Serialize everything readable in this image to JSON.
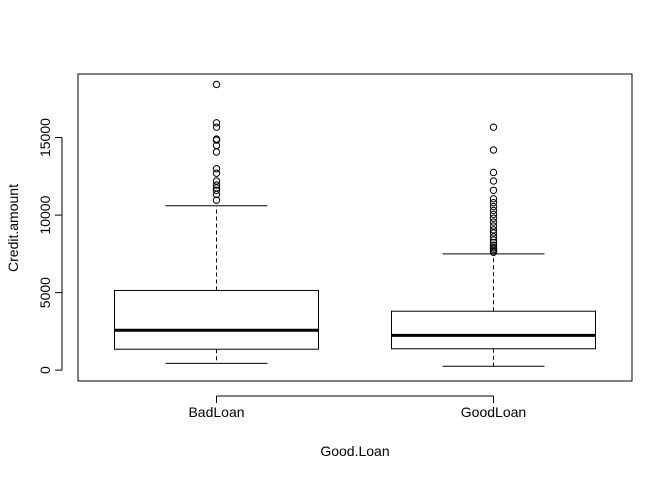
{
  "chart_data": {
    "type": "boxplot",
    "title": "",
    "xlabel": "Good.Loan",
    "ylabel": "Credit.amount",
    "ylim": [
      -700,
      19100
    ],
    "yticks": [
      0,
      5000,
      10000,
      15000
    ],
    "ytick_labels": [
      "0",
      "5000",
      "10000",
      "15000"
    ],
    "grid": false,
    "categories": [
      "BadLoan",
      "GoodLoan"
    ],
    "series": [
      {
        "category": "BadLoan",
        "whisker_low": 433,
        "q1": 1350,
        "median": 2574,
        "q3": 5140,
        "whisker_high": 10600,
        "outliers": [
          10960,
          11330,
          11600,
          11760,
          11940,
          12200,
          12700,
          12990,
          14070,
          14490,
          14840,
          14900,
          15670,
          15950,
          18424
        ]
      },
      {
        "category": "GoodLoan",
        "whisker_low": 250,
        "q1": 1380,
        "median": 2245,
        "q3": 3800,
        "whisker_high": 7500,
        "outliers": [
          7600,
          7700,
          7800,
          7900,
          8050,
          8230,
          8400,
          8600,
          8850,
          9050,
          9300,
          9550,
          9800,
          10050,
          10300,
          10550,
          10800,
          11050,
          11600,
          12200,
          12750,
          14200,
          15670
        ]
      }
    ]
  }
}
